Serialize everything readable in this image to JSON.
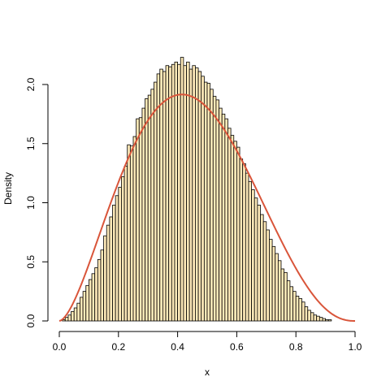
{
  "chart_data": {
    "type": "bar",
    "subtype": "histogram-with-density-curve",
    "title": "",
    "xlabel": "x",
    "ylabel": "Density",
    "xlim": [
      0.0,
      1.0
    ],
    "ylim": [
      0.0,
      2.25
    ],
    "x_ticks": [
      "0.0",
      "0.2",
      "0.4",
      "0.6",
      "0.8",
      "1.0"
    ],
    "y_ticks": [
      "0.0",
      "0.5",
      "1.0",
      "1.5",
      "2.0"
    ],
    "bin_width": 0.01,
    "bin_start": 0.0,
    "bar_color": "#fde9b8",
    "curve_color": "#d9553a",
    "curve": {
      "name": "",
      "type": "beta",
      "shape1": 2.7,
      "shape2": 3.4
    },
    "values": [
      0.0,
      0.01,
      0.03,
      0.05,
      0.08,
      0.11,
      0.15,
      0.2,
      0.25,
      0.3,
      0.35,
      0.4,
      0.45,
      0.52,
      0.6,
      0.72,
      0.81,
      0.88,
      0.98,
      1.06,
      1.13,
      1.22,
      1.31,
      1.49,
      1.48,
      1.56,
      1.71,
      1.72,
      1.8,
      1.88,
      1.91,
      1.96,
      2.02,
      2.09,
      2.13,
      2.11,
      2.16,
      2.15,
      2.17,
      2.19,
      2.17,
      2.23,
      2.16,
      2.19,
      2.13,
      2.16,
      2.14,
      2.11,
      2.07,
      2.02,
      2.01,
      1.96,
      1.9,
      1.87,
      1.8,
      1.75,
      1.71,
      1.63,
      1.57,
      1.52,
      1.47,
      1.37,
      1.33,
      1.25,
      1.18,
      1.11,
      1.04,
      0.98,
      0.9,
      0.84,
      0.77,
      0.69,
      0.63,
      0.57,
      0.51,
      0.44,
      0.41,
      0.34,
      0.29,
      0.25,
      0.21,
      0.19,
      0.16,
      0.12,
      0.09,
      0.07,
      0.05,
      0.04,
      0.03,
      0.02,
      0.01,
      0.01,
      0.0,
      0.0,
      0.0,
      0.0,
      0.0,
      0.0,
      0.0,
      0.0
    ]
  }
}
